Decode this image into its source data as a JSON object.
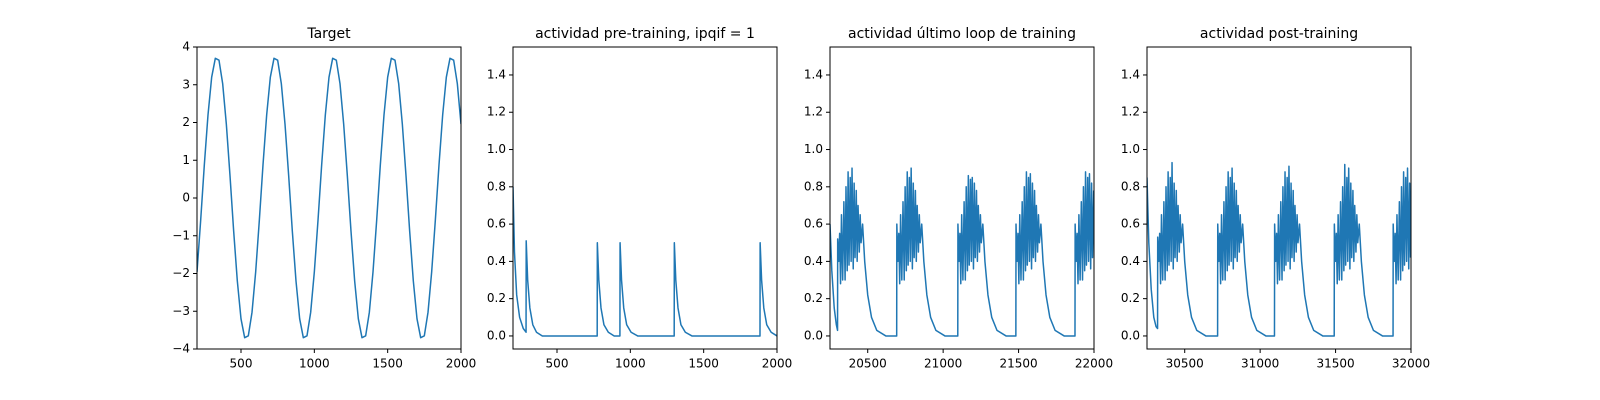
{
  "chart_data": [
    {
      "type": "line",
      "title": "Target",
      "color": "#1f77b4",
      "x": [
        200,
        225,
        250,
        275,
        300,
        325,
        350,
        375,
        400,
        425,
        450,
        475,
        500,
        525,
        550,
        575,
        600,
        625,
        650,
        675,
        700,
        725,
        750,
        775,
        800,
        825,
        850,
        875,
        900,
        925,
        950,
        975,
        1000,
        1025,
        1050,
        1075,
        1100,
        1125,
        1150,
        1175,
        1200,
        1225,
        1250,
        1275,
        1300,
        1325,
        1350,
        1375,
        1400,
        1425,
        1450,
        1475,
        1500,
        1525,
        1550,
        1575,
        1600,
        1625,
        1650,
        1675,
        1700,
        1725,
        1750,
        1775,
        1800,
        1825,
        1850,
        1875,
        1900,
        1925,
        1950,
        1975,
        2000
      ],
      "values": [
        -1.96,
        -0.59,
        0.88,
        2.2,
        3.2,
        3.7,
        3.65,
        3.03,
        1.96,
        0.59,
        -0.88,
        -2.2,
        -3.2,
        -3.7,
        -3.65,
        -3.03,
        -1.96,
        -0.59,
        0.88,
        2.2,
        3.2,
        3.7,
        3.65,
        3.03,
        1.96,
        0.59,
        -0.88,
        -2.2,
        -3.2,
        -3.7,
        -3.65,
        -3.03,
        -1.96,
        -0.59,
        0.88,
        2.2,
        3.2,
        3.7,
        3.65,
        3.03,
        1.96,
        0.59,
        -0.88,
        -2.2,
        -3.2,
        -3.7,
        -3.65,
        -3.03,
        -1.96,
        -0.59,
        0.88,
        2.2,
        3.2,
        3.7,
        3.65,
        3.03,
        1.96,
        0.59,
        -0.88,
        -2.2,
        -3.2,
        -3.7,
        -3.65,
        -3.03,
        -1.96,
        -0.59,
        0.88,
        2.2,
        3.2,
        3.7,
        3.65,
        3.03,
        1.96
      ],
      "xlim": [
        200,
        2000
      ],
      "ylim": [
        -4,
        4
      ],
      "xticks": [
        500,
        1000,
        1500,
        2000
      ],
      "yticks": [
        {
          "value": -4,
          "label": "−4"
        },
        {
          "value": -3,
          "label": "−3"
        },
        {
          "value": -2,
          "label": "−2"
        },
        {
          "value": -1,
          "label": "−1"
        },
        0,
        1,
        2,
        3,
        4
      ]
    },
    {
      "type": "line",
      "title": "actividad pre-training, ipqif = 1",
      "color": "#1f77b4",
      "x": [
        200,
        210,
        225,
        245,
        270,
        289,
        290,
        300,
        315,
        335,
        360,
        400,
        774,
        775,
        785,
        800,
        820,
        850,
        890,
        929,
        930,
        940,
        955,
        975,
        1005,
        1050,
        1299,
        1300,
        1310,
        1325,
        1345,
        1375,
        1420,
        1884,
        1885,
        1895,
        1910,
        1930,
        1960,
        2000
      ],
      "values": [
        0.8,
        0.45,
        0.22,
        0.1,
        0.04,
        0.02,
        0.51,
        0.3,
        0.15,
        0.06,
        0.02,
        0,
        0,
        0.5,
        0.3,
        0.15,
        0.06,
        0.02,
        0,
        0,
        0.5,
        0.3,
        0.15,
        0.06,
        0.02,
        0,
        0,
        0.5,
        0.3,
        0.15,
        0.06,
        0.02,
        0,
        0,
        0.5,
        0.3,
        0.15,
        0.06,
        0.02,
        0
      ],
      "xlim": [
        200,
        2000
      ],
      "ylim": [
        -0.07,
        1.55
      ],
      "xticks": [
        500,
        1000,
        1500,
        2000
      ],
      "yticks": [
        {
          "value": 0,
          "label": "0.0"
        },
        0.2,
        0.4,
        0.6,
        0.8,
        {
          "value": 1,
          "label": "1.0"
        },
        1.2,
        1.4
      ]
    },
    {
      "type": "line",
      "title": "actividad último loop de training",
      "color": "#1f77b4",
      "x": [
        20250,
        20262,
        20278,
        20292,
        20300,
        20301,
        20308,
        20314,
        20320,
        20326,
        20334,
        20342,
        20350,
        20356,
        20364,
        20370,
        20376,
        20384,
        20390,
        20396,
        20404,
        20410,
        20416,
        20424,
        20430,
        20436,
        20444,
        20450,
        20456,
        20466,
        20480,
        20500,
        20525,
        20560,
        20620,
        20692,
        20693,
        20700,
        20706,
        20712,
        20718,
        20726,
        20734,
        20742,
        20748,
        20756,
        20762,
        20768,
        20776,
        20782,
        20788,
        20796,
        20802,
        20808,
        20816,
        20822,
        20828,
        20836,
        20842,
        20848,
        20858,
        20872,
        20892,
        20917,
        20952,
        21012,
        21097,
        21098,
        21105,
        21111,
        21117,
        21123,
        21131,
        21139,
        21147,
        21153,
        21161,
        21167,
        21173,
        21181,
        21187,
        21193,
        21201,
        21207,
        21213,
        21221,
        21227,
        21233,
        21241,
        21247,
        21253,
        21263,
        21277,
        21297,
        21322,
        21357,
        21417,
        21482,
        21483,
        21490,
        21496,
        21502,
        21508,
        21516,
        21524,
        21532,
        21538,
        21546,
        21552,
        21558,
        21566,
        21572,
        21578,
        21586,
        21592,
        21598,
        21606,
        21612,
        21618,
        21626,
        21632,
        21638,
        21648,
        21662,
        21682,
        21707,
        21742,
        21802,
        21874,
        21875,
        21882,
        21888,
        21894,
        21900,
        21908,
        21916,
        21924,
        21930,
        21938,
        21944,
        21950,
        21958,
        21964,
        21970,
        21978,
        21984,
        21990,
        21998
      ],
      "values": [
        0.6,
        0.35,
        0.15,
        0.06,
        0.03,
        0.52,
        0.4,
        0.55,
        0.28,
        0.65,
        0.3,
        0.72,
        0.3,
        0.8,
        0.35,
        0.88,
        0.38,
        0.85,
        0.4,
        0.9,
        0.36,
        0.82,
        0.42,
        0.78,
        0.4,
        0.7,
        0.45,
        0.65,
        0.5,
        0.6,
        0.4,
        0.22,
        0.1,
        0.03,
        0,
        0,
        0.6,
        0.4,
        0.55,
        0.28,
        0.65,
        0.3,
        0.72,
        0.3,
        0.8,
        0.35,
        0.88,
        0.38,
        0.85,
        0.4,
        0.9,
        0.36,
        0.82,
        0.42,
        0.78,
        0.4,
        0.7,
        0.45,
        0.65,
        0.5,
        0.6,
        0.4,
        0.22,
        0.1,
        0.03,
        0,
        0,
        0.6,
        0.4,
        0.55,
        0.28,
        0.65,
        0.3,
        0.72,
        0.3,
        0.8,
        0.35,
        0.86,
        0.38,
        0.84,
        0.4,
        0.85,
        0.36,
        0.82,
        0.42,
        0.78,
        0.4,
        0.7,
        0.45,
        0.65,
        0.5,
        0.6,
        0.4,
        0.22,
        0.1,
        0.03,
        0,
        0,
        0.6,
        0.4,
        0.55,
        0.28,
        0.65,
        0.3,
        0.72,
        0.3,
        0.8,
        0.35,
        0.88,
        0.38,
        0.85,
        0.4,
        0.87,
        0.36,
        0.82,
        0.42,
        0.78,
        0.4,
        0.7,
        0.45,
        0.65,
        0.5,
        0.6,
        0.4,
        0.22,
        0.1,
        0.03,
        0,
        0,
        0.6,
        0.4,
        0.55,
        0.28,
        0.65,
        0.3,
        0.72,
        0.3,
        0.8,
        0.35,
        0.88,
        0.38,
        0.85,
        0.4,
        0.87,
        0.36,
        0.82,
        0.42,
        0.78
      ],
      "xlim": [
        20250,
        22000
      ],
      "ylim": [
        -0.07,
        1.55
      ],
      "xticks": [
        20500,
        21000,
        21500,
        22000
      ],
      "yticks": [
        {
          "value": 0,
          "label": "0.0"
        },
        0.2,
        0.4,
        0.6,
        0.8,
        {
          "value": 1,
          "label": "1.0"
        },
        1.2,
        1.4
      ]
    },
    {
      "type": "line",
      "title": "actividad post-training",
      "color": "#1f77b4",
      "x": [
        30250,
        30262,
        30278,
        30295,
        30310,
        30320,
        30321,
        30328,
        30334,
        30340,
        30346,
        30354,
        30362,
        30370,
        30376,
        30384,
        30390,
        30396,
        30404,
        30410,
        30416,
        30424,
        30430,
        30436,
        30444,
        30450,
        30456,
        30464,
        30470,
        30476,
        30486,
        30500,
        30520,
        30545,
        30580,
        30640,
        30718,
        30719,
        30726,
        30732,
        30738,
        30744,
        30752,
        30760,
        30768,
        30774,
        30782,
        30788,
        30794,
        30802,
        30808,
        30814,
        30822,
        30828,
        30834,
        30842,
        30848,
        30854,
        30862,
        30868,
        30874,
        30884,
        30898,
        30918,
        30943,
        30978,
        31038,
        31095,
        31096,
        31103,
        31109,
        31115,
        31121,
        31129,
        31137,
        31145,
        31151,
        31159,
        31165,
        31171,
        31179,
        31185,
        31191,
        31199,
        31205,
        31211,
        31219,
        31225,
        31231,
        31239,
        31245,
        31251,
        31261,
        31275,
        31295,
        31320,
        31355,
        31415,
        31491,
        31492,
        31499,
        31505,
        31511,
        31517,
        31525,
        31533,
        31541,
        31547,
        31555,
        31561,
        31567,
        31575,
        31581,
        31587,
        31595,
        31601,
        31607,
        31615,
        31621,
        31627,
        31635,
        31641,
        31647,
        31657,
        31671,
        31691,
        31716,
        31751,
        31811,
        31881,
        31882,
        31889,
        31895,
        31901,
        31907,
        31915,
        31923,
        31931,
        31937,
        31945,
        31951,
        31957,
        31965,
        31971,
        31977,
        31985,
        31991,
        31997
      ],
      "values": [
        0.85,
        0.5,
        0.25,
        0.1,
        0.05,
        0.04,
        0.53,
        0.4,
        0.55,
        0.28,
        0.65,
        0.3,
        0.72,
        0.3,
        0.8,
        0.35,
        0.88,
        0.38,
        0.85,
        0.4,
        0.93,
        0.36,
        0.82,
        0.42,
        0.78,
        0.4,
        0.7,
        0.45,
        0.65,
        0.5,
        0.6,
        0.4,
        0.22,
        0.1,
        0.03,
        0,
        0,
        0.6,
        0.4,
        0.55,
        0.28,
        0.65,
        0.3,
        0.72,
        0.3,
        0.8,
        0.35,
        0.88,
        0.38,
        0.85,
        0.4,
        0.9,
        0.36,
        0.82,
        0.42,
        0.78,
        0.4,
        0.7,
        0.45,
        0.65,
        0.5,
        0.6,
        0.4,
        0.22,
        0.1,
        0.03,
        0,
        0,
        0.6,
        0.4,
        0.55,
        0.28,
        0.65,
        0.3,
        0.72,
        0.3,
        0.8,
        0.35,
        0.88,
        0.38,
        0.85,
        0.4,
        0.91,
        0.36,
        0.82,
        0.42,
        0.78,
        0.4,
        0.7,
        0.45,
        0.65,
        0.5,
        0.6,
        0.4,
        0.22,
        0.1,
        0.03,
        0,
        0,
        0.6,
        0.4,
        0.55,
        0.28,
        0.65,
        0.3,
        0.72,
        0.3,
        0.8,
        0.35,
        0.92,
        0.38,
        0.85,
        0.4,
        0.9,
        0.36,
        0.82,
        0.42,
        0.78,
        0.4,
        0.7,
        0.45,
        0.65,
        0.5,
        0.6,
        0.4,
        0.22,
        0.1,
        0.03,
        0,
        0,
        0.6,
        0.4,
        0.55,
        0.28,
        0.65,
        0.3,
        0.72,
        0.3,
        0.8,
        0.35,
        0.88,
        0.38,
        0.85,
        0.4,
        0.9,
        0.36,
        0.82,
        0.42
      ],
      "xlim": [
        30250,
        32000
      ],
      "ylim": [
        -0.07,
        1.55
      ],
      "xticks": [
        30500,
        31000,
        31500,
        32000
      ],
      "yticks": [
        {
          "value": 0,
          "label": "0.0"
        },
        0.2,
        0.4,
        0.6,
        0.8,
        {
          "value": 1,
          "label": "1.0"
        },
        1.2,
        1.4
      ]
    }
  ]
}
